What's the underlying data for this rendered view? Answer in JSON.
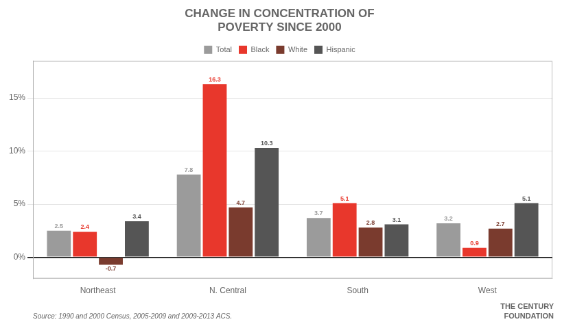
{
  "chart_data": {
    "type": "bar",
    "title": [
      "CHANGE IN CONCENTRATION OF",
      "POVERTY SINCE 2000"
    ],
    "categories": [
      "Northeast",
      "N. Central",
      "South",
      "West"
    ],
    "series": [
      {
        "name": "Total",
        "color": "#9b9b9b",
        "values": [
          2.5,
          7.8,
          3.7,
          3.2
        ]
      },
      {
        "name": "Black",
        "color": "#e8372c",
        "values": [
          2.4,
          16.3,
          5.1,
          0.9
        ]
      },
      {
        "name": "White",
        "color": "#7a3b2e",
        "values": [
          -0.7,
          4.7,
          2.8,
          2.7
        ]
      },
      {
        "name": "Hispanic",
        "color": "#555555",
        "values": [
          3.4,
          10.3,
          3.1,
          5.1
        ]
      }
    ],
    "ylim": [
      -2.0,
      18.5
    ],
    "yticks": [
      {
        "value": 0,
        "label": "0%"
      },
      {
        "value": 5,
        "label": "5%"
      },
      {
        "value": 10,
        "label": "10%"
      },
      {
        "value": 15,
        "label": "15%"
      }
    ],
    "grid": true,
    "legend": "top",
    "data_labels": true,
    "annotations": [
      "Source: 1990 and 2000 Census, 2005-2009 and 2009-2013 ACS.",
      "THE CENTURY",
      "FOUNDATION"
    ]
  }
}
